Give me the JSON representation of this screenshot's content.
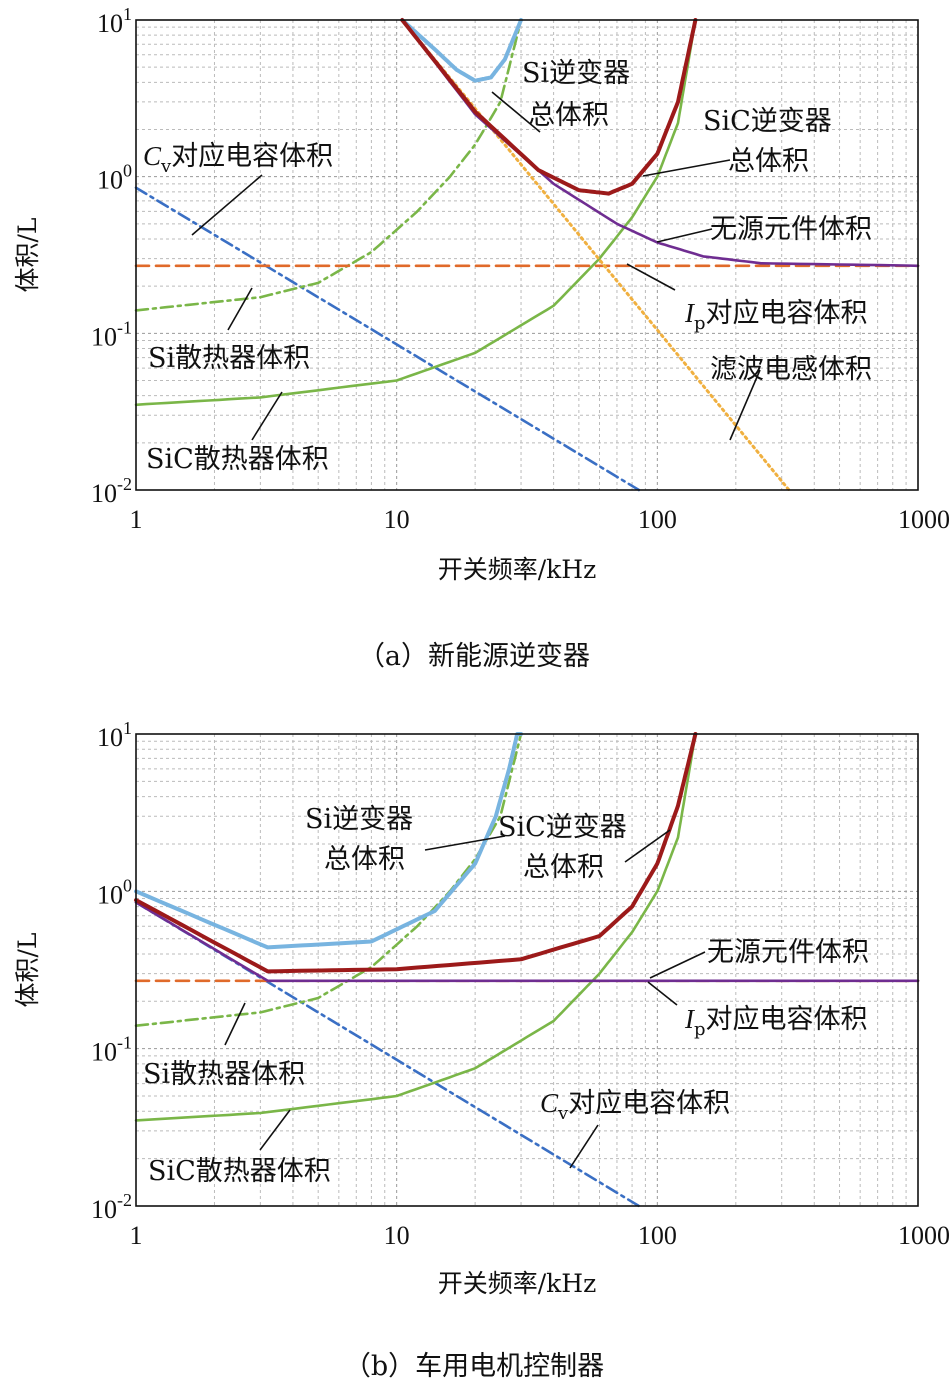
{
  "chart_data": [
    {
      "type": "line",
      "caption": "（a）新能源逆变器",
      "xlabel": "开关频率/kHz",
      "ylabel": "体积/L",
      "xscale": "log",
      "yscale": "log",
      "xlim": [
        1,
        1000
      ],
      "ylim": [
        0.01,
        10
      ],
      "grid": true,
      "x_ticks": [
        "1",
        "10",
        "100",
        "1000"
      ],
      "y_ticks": [
        {
          "base": "10",
          "exp": "1"
        },
        {
          "base": "10",
          "exp": "0"
        },
        {
          "base": "10",
          "exp": "-1"
        },
        {
          "base": "10",
          "exp": "-2"
        }
      ],
      "series": [
        {
          "name": "Cv对应电容体积",
          "color": "#3a6fc4",
          "dash": "dashdot",
          "x": [
            1,
            85
          ],
          "y": [
            0.85,
            0.01
          ]
        },
        {
          "name": "Si散热器体积",
          "color": "#7ab648",
          "dash": "dashdot",
          "x": [
            1,
            3,
            5,
            8,
            12,
            16,
            20,
            25,
            30
          ],
          "y": [
            0.14,
            0.17,
            0.21,
            0.33,
            0.6,
            1.0,
            1.6,
            3.0,
            10
          ]
        },
        {
          "name": "SiC散热器体积",
          "color": "#7ab648",
          "dash": "solid",
          "x": [
            1,
            3,
            10,
            20,
            40,
            60,
            80,
            100,
            120,
            140
          ],
          "y": [
            0.035,
            0.039,
            0.05,
            0.075,
            0.15,
            0.3,
            0.55,
            1.0,
            2.2,
            10
          ]
        },
        {
          "name": "Ip对应电容体积",
          "color": "#e06a2a",
          "dash": "dashed",
          "x": [
            1,
            1000
          ],
          "y": [
            0.27,
            0.27
          ]
        },
        {
          "name": "滤波电感体积",
          "color": "#f0b040",
          "dash": "dotted",
          "x": [
            10.5,
            320
          ],
          "y": [
            10,
            0.01
          ]
        },
        {
          "name": "无源元件体积",
          "color": "#6f2d91",
          "dash": "solid",
          "x": [
            10.5,
            20,
            40,
            70,
            100,
            150,
            250,
            1000
          ],
          "y": [
            10,
            2.5,
            0.9,
            0.5,
            0.38,
            0.31,
            0.28,
            0.27
          ]
        },
        {
          "name": "Si逆变器总体积",
          "color": "#78b4e0",
          "dash": "solid",
          "x": [
            10.5,
            14,
            17,
            20,
            23,
            26,
            30
          ],
          "y": [
            10,
            6.5,
            4.8,
            4.1,
            4.3,
            5.6,
            10
          ]
        },
        {
          "name": "SiC逆变器总体积",
          "color": "#9c1a1a",
          "dash": "solid",
          "x": [
            10.5,
            20,
            35,
            50,
            65,
            80,
            100,
            120,
            140
          ],
          "y": [
            10,
            2.6,
            1.1,
            0.82,
            0.78,
            0.9,
            1.4,
            3.0,
            10
          ]
        }
      ],
      "annotations": [
        "Cv对应电容体积",
        "Si逆变器",
        "总体积",
        "SiC逆变器",
        "总体积",
        "无源元件体积",
        "Ip对应电容体积",
        "滤波电感体积",
        "Si散热器体积",
        "SiC散热器体积"
      ]
    },
    {
      "type": "line",
      "caption": "（b）车用电机控制器",
      "xlabel": "开关频率/kHz",
      "ylabel": "体积/L",
      "xscale": "log",
      "yscale": "log",
      "xlim": [
        1,
        1000
      ],
      "ylim": [
        0.01,
        10
      ],
      "grid": true,
      "x_ticks": [
        "1",
        "10",
        "100",
        "1000"
      ],
      "y_ticks": [
        {
          "base": "10",
          "exp": "1"
        },
        {
          "base": "10",
          "exp": "0"
        },
        {
          "base": "10",
          "exp": "-1"
        },
        {
          "base": "10",
          "exp": "-2"
        }
      ],
      "series": [
        {
          "name": "Cv对应电容体积",
          "color": "#3a6fc4",
          "dash": "dashdot",
          "x": [
            1,
            85
          ],
          "y": [
            0.85,
            0.01
          ]
        },
        {
          "name": "Si散热器体积",
          "color": "#7ab648",
          "dash": "dashdot",
          "x": [
            1,
            3,
            5,
            8,
            12,
            16,
            20,
            25,
            30
          ],
          "y": [
            0.14,
            0.17,
            0.21,
            0.33,
            0.6,
            1.0,
            1.6,
            3.0,
            10
          ]
        },
        {
          "name": "SiC散热器体积",
          "color": "#7ab648",
          "dash": "solid",
          "x": [
            1,
            3,
            10,
            20,
            40,
            60,
            80,
            100,
            120,
            140
          ],
          "y": [
            0.035,
            0.039,
            0.05,
            0.075,
            0.15,
            0.3,
            0.55,
            1.0,
            2.2,
            10
          ]
        },
        {
          "name": "Ip对应电容体积",
          "color": "#e06a2a",
          "dash": "dashed",
          "x": [
            1,
            1000
          ],
          "y": [
            0.27,
            0.27
          ]
        },
        {
          "name": "无源元件体积",
          "color": "#6f2d91",
          "dash": "solid",
          "x": [
            1,
            3.2,
            1000
          ],
          "y": [
            0.85,
            0.27,
            0.27
          ]
        },
        {
          "name": "Si逆变器总体积",
          "color": "#78b4e0",
          "dash": "solid",
          "x": [
            1,
            3.2,
            8,
            14,
            20,
            24,
            27,
            29,
            30
          ],
          "y": [
            1.0,
            0.44,
            0.48,
            0.75,
            1.5,
            3.0,
            6.0,
            10,
            10
          ]
        },
        {
          "name": "SiC逆变器总体积",
          "color": "#9c1a1a",
          "dash": "solid",
          "x": [
            1,
            3.2,
            10,
            30,
            60,
            80,
            100,
            120,
            140
          ],
          "y": [
            0.88,
            0.31,
            0.32,
            0.37,
            0.52,
            0.8,
            1.5,
            3.5,
            10
          ]
        }
      ],
      "annotations": [
        "Si逆变器",
        "总体积",
        "SiC逆变器",
        "总体积",
        "无源元件体积",
        "Ip对应电容体积",
        "Si散热器体积",
        "Cv对应电容体积",
        "SiC散热器体积"
      ]
    }
  ]
}
